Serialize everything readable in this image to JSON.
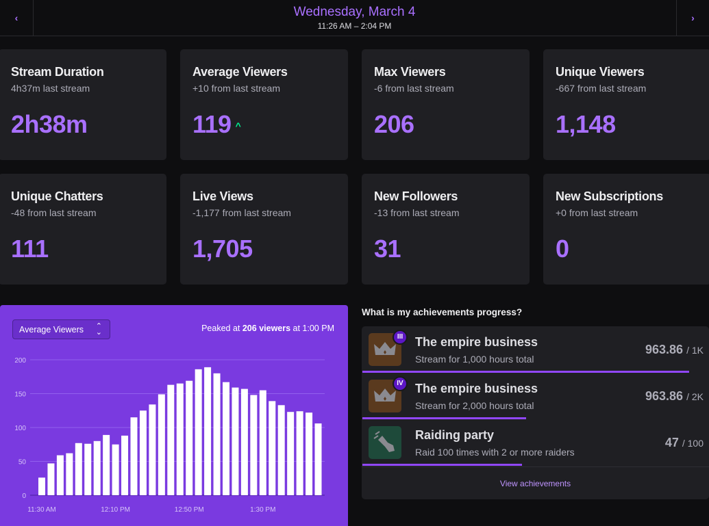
{
  "header": {
    "prev": "‹",
    "next": "›",
    "date": "Wednesday, March 4",
    "time_range": "11:26 AM – 2:04 PM"
  },
  "stats": [
    {
      "title": "Stream Duration",
      "sub": "4h37m last stream",
      "value": "2h38m"
    },
    {
      "title": "Average Viewers",
      "sub": "+10 from last stream",
      "value": "119",
      "trend": "^"
    },
    {
      "title": "Max Viewers",
      "sub": "-6 from last stream",
      "value": "206"
    },
    {
      "title": "Unique Viewers",
      "sub": "-667 from last stream",
      "value": "1,148"
    },
    {
      "title": "Unique Chatters",
      "sub": "-48 from last stream",
      "value": "111"
    },
    {
      "title": "Live Views",
      "sub": "-1,177 from last stream",
      "value": "1,705"
    },
    {
      "title": "New Followers",
      "sub": "-13 from last stream",
      "value": "31"
    },
    {
      "title": "New Subscriptions",
      "sub": "+0 from last stream",
      "value": "0"
    }
  ],
  "chart_panel": {
    "select": "Average Viewers",
    "peak_pre": "Peaked at ",
    "peak_val": "206 viewers",
    "peak_post": " at 1:00 PM"
  },
  "chart_data": {
    "type": "bar",
    "ylabel": "Average Viewers",
    "ylim": [
      0,
      200
    ],
    "yticks": [
      0,
      50,
      100,
      150,
      200
    ],
    "xticklabels": [
      {
        "label": "11:30 AM",
        "index": 0
      },
      {
        "label": "12:10 PM",
        "index": 8
      },
      {
        "label": "12:50 PM",
        "index": 16
      },
      {
        "label": "1:30 PM",
        "index": 24
      }
    ],
    "values": [
      26,
      47,
      59,
      62,
      77,
      76,
      80,
      89,
      75,
      88,
      115,
      125,
      134,
      149,
      163,
      165,
      169,
      186,
      189,
      180,
      167,
      159,
      157,
      148,
      155,
      139,
      133,
      123,
      124,
      122,
      106
    ],
    "colors": {
      "bar": "#ffffff",
      "bg": "#7a3ae0"
    }
  },
  "achievements": {
    "heading": "What is my achievements progress?",
    "items": [
      {
        "title": "The empire business",
        "desc": "Stream for 1,000 hours total",
        "value": "963.86",
        "target": "/ 1K",
        "progress": 0.9639,
        "badge": "III",
        "icon": "crown-icon"
      },
      {
        "title": "The empire business",
        "desc": "Stream for 2,000 hours total",
        "value": "963.86",
        "target": "/ 2K",
        "progress": 0.4819,
        "badge": "IV",
        "icon": "crown-icon"
      },
      {
        "title": "Raiding party",
        "desc": "Raid 100 times with 2 or more raiders",
        "value": "47",
        "target": "/ 100",
        "progress": 0.47,
        "icon": "fist-icon"
      }
    ],
    "view_link": "View achievements"
  }
}
